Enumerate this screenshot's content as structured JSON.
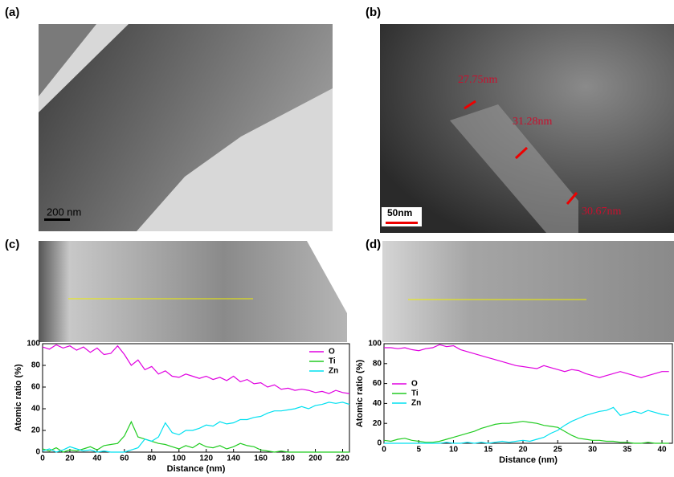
{
  "panels": [
    {
      "label": "(a)",
      "scale_bar": "200 nm"
    },
    {
      "label": "(b)",
      "scale_bar": "50nm",
      "annotations": [
        "27.75nm",
        "31.28nm",
        "30.67nm"
      ]
    },
    {
      "label": "(c)"
    },
    {
      "label": "(d)"
    }
  ],
  "chart_data": [
    {
      "type": "line",
      "x_label": "Distance (nm)",
      "y_label": "Atomic ratio (%)",
      "x": [
        0,
        5,
        10,
        15,
        20,
        25,
        30,
        35,
        40,
        45,
        50,
        55,
        60,
        65,
        70,
        75,
        80,
        85,
        90,
        95,
        100,
        105,
        110,
        115,
        120,
        125,
        130,
        135,
        140,
        145,
        150,
        155,
        160,
        165,
        170,
        175,
        180,
        185,
        190,
        195,
        200,
        205,
        210,
        215,
        220,
        225
      ],
      "series": [
        {
          "name": "O",
          "color": "#e000e0",
          "values": [
            97,
            95,
            99,
            96,
            98,
            94,
            97,
            92,
            96,
            90,
            91,
            98,
            90,
            80,
            85,
            76,
            79,
            72,
            75,
            70,
            69,
            72,
            70,
            68,
            70,
            67,
            69,
            66,
            70,
            65,
            67,
            63,
            64,
            60,
            62,
            58,
            59,
            57,
            58,
            57,
            55,
            56,
            54,
            57,
            55,
            54
          ]
        },
        {
          "name": "Ti",
          "color": "#22cc22",
          "values": [
            3,
            1,
            4,
            0,
            2,
            1,
            3,
            5,
            2,
            6,
            7,
            8,
            15,
            28,
            14,
            12,
            10,
            8,
            7,
            5,
            3,
            6,
            4,
            8,
            5,
            4,
            6,
            3,
            5,
            8,
            6,
            5,
            2,
            1,
            0,
            1,
            0,
            0,
            0,
            0,
            0,
            0,
            0,
            0,
            0,
            0
          ]
        },
        {
          "name": "Zn",
          "color": "#00e0f0",
          "values": [
            1,
            3,
            0,
            2,
            5,
            3,
            1,
            2,
            0,
            1,
            0,
            0,
            0,
            2,
            4,
            12,
            10,
            14,
            27,
            18,
            16,
            20,
            20,
            22,
            25,
            24,
            28,
            26,
            27,
            30,
            30,
            32,
            33,
            36,
            38,
            38,
            39,
            40,
            42,
            40,
            43,
            44,
            46,
            45,
            46,
            44
          ]
        }
      ],
      "xlim": [
        0,
        225
      ],
      "xticks": [
        0,
        20,
        40,
        60,
        80,
        100,
        120,
        140,
        160,
        180,
        200,
        220
      ],
      "ylim": [
        0,
        100
      ],
      "yticks": [
        0,
        20,
        40,
        60,
        80,
        100
      ],
      "legend": "upper right"
    },
    {
      "type": "line",
      "x_label": "Distance (nm)",
      "y_label": "Atomic ratio (%)",
      "x": [
        0,
        1,
        2,
        3,
        4,
        5,
        6,
        7,
        8,
        9,
        10,
        11,
        12,
        13,
        14,
        15,
        16,
        17,
        18,
        19,
        20,
        21,
        22,
        23,
        24,
        25,
        26,
        27,
        28,
        29,
        30,
        31,
        32,
        33,
        34,
        35,
        36,
        37,
        38,
        39,
        40,
        41
      ],
      "series": [
        {
          "name": "O",
          "color": "#e000e0",
          "values": [
            96,
            96,
            95,
            96,
            94,
            93,
            95,
            96,
            99,
            97,
            98,
            94,
            92,
            90,
            88,
            86,
            84,
            82,
            80,
            78,
            77,
            76,
            75,
            78,
            76,
            74,
            72,
            74,
            73,
            70,
            68,
            66,
            68,
            70,
            72,
            70,
            68,
            66,
            68,
            70,
            72,
            72
          ]
        },
        {
          "name": "Ti",
          "color": "#22cc22",
          "values": [
            3,
            2,
            4,
            5,
            3,
            2,
            1,
            1,
            2,
            4,
            6,
            8,
            10,
            12,
            15,
            17,
            19,
            20,
            20,
            21,
            22,
            21,
            20,
            18,
            17,
            16,
            12,
            8,
            5,
            4,
            3,
            3,
            2,
            2,
            1,
            1,
            0,
            0,
            1,
            0,
            0,
            0
          ]
        },
        {
          "name": "Zn",
          "color": "#00e0f0",
          "values": [
            0,
            0,
            0,
            0,
            0,
            0,
            0,
            0,
            0,
            1,
            0,
            0,
            1,
            0,
            1,
            0,
            1,
            2,
            1,
            2,
            3,
            2,
            4,
            6,
            10,
            13,
            18,
            22,
            25,
            28,
            30,
            32,
            33,
            36,
            28,
            30,
            32,
            30,
            33,
            31,
            29,
            28
          ]
        }
      ],
      "xlim": [
        0,
        41.5
      ],
      "xticks": [
        0,
        5,
        10,
        15,
        20,
        25,
        30,
        35,
        40
      ],
      "ylim": [
        0,
        100
      ],
      "yticks": [
        0,
        20,
        40,
        60,
        80,
        100
      ],
      "legend": "center left"
    }
  ]
}
